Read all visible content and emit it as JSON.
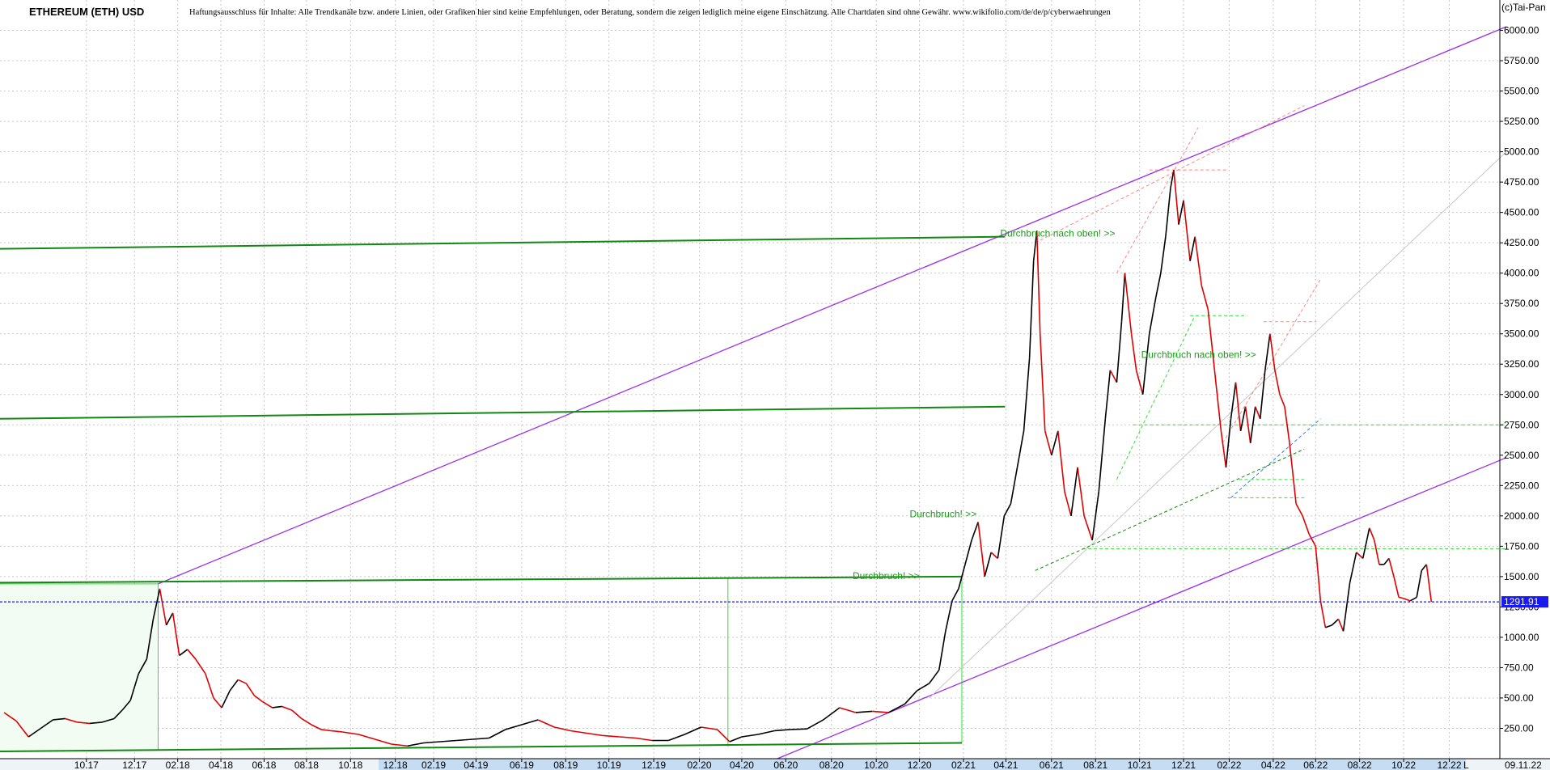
{
  "header": {
    "title": "ETHEREUM (ETH) USD",
    "disclaimer": "Haftungsausschluss für Inhalte: Alle Trendkanäle bzw. andere Linien, oder Grafiken hier sind keine Empfehlungen, oder Beratung, sondern die zeigen lediglich meine eigene Einschätzung. Alle Chartdaten sind ohne Gewähr.  www.wikifolio.com/de/de/p/cyberwaehrungen",
    "copyright": "(c)Tai-Pan"
  },
  "colors": {
    "candle_up": "#000000",
    "candle_down": "#e00000",
    "channel": "#9a30e8",
    "resistance": "#118811",
    "light_green": "#33dd33",
    "last_price": "#1a1aee"
  },
  "chart_data": {
    "type": "line",
    "ylim": [
      0,
      6250
    ],
    "yticks": [
      250,
      500,
      750,
      1000,
      1250,
      1500,
      1750,
      2000,
      2250,
      2500,
      2750,
      3000,
      3250,
      3500,
      3750,
      4000,
      4250,
      4500,
      4750,
      5000,
      5250,
      5500,
      5750,
      6000
    ],
    "ytick_labels": [
      "250.00",
      "500.00",
      "750.00",
      "1000.00",
      "1250.00",
      "1500.00",
      "1750.00",
      "2000.00",
      "2250.00",
      "2500.00",
      "2750.00",
      "3000.00",
      "3250.00",
      "3500.00",
      "3750.00",
      "4000.00",
      "4250.00",
      "4500.00",
      "4750.00",
      "5000.00",
      "5250.00",
      "5500.00",
      "5750.00",
      "6000.00"
    ],
    "x_index_range": [
      0,
      1840
    ],
    "xticks": [
      {
        "i": 106,
        "label": "10.17"
      },
      {
        "i": 165,
        "label": "12.17"
      },
      {
        "i": 218,
        "label": "02.18"
      },
      {
        "i": 271,
        "label": "04.18"
      },
      {
        "i": 324,
        "label": "06.18"
      },
      {
        "i": 376,
        "label": "08.18"
      },
      {
        "i": 430,
        "label": "10.18"
      },
      {
        "i": 485,
        "label": "12.18"
      },
      {
        "i": 532,
        "label": "02.19"
      },
      {
        "i": 584,
        "label": "04.19"
      },
      {
        "i": 640,
        "label": "06.19"
      },
      {
        "i": 694,
        "label": "08.19"
      },
      {
        "i": 747,
        "label": "10.19"
      },
      {
        "i": 802,
        "label": "12.19"
      },
      {
        "i": 858,
        "label": "02.20"
      },
      {
        "i": 910,
        "label": "04.20"
      },
      {
        "i": 964,
        "label": "06.20"
      },
      {
        "i": 1020,
        "label": "08.20"
      },
      {
        "i": 1075,
        "label": "10.20"
      },
      {
        "i": 1128,
        "label": "12.20"
      },
      {
        "i": 1182,
        "label": "02.21"
      },
      {
        "i": 1234,
        "label": "04.21"
      },
      {
        "i": 1290,
        "label": "06.21"
      },
      {
        "i": 1344,
        "label": "08.21"
      },
      {
        "i": 1398,
        "label": "10.21"
      },
      {
        "i": 1452,
        "label": "12.21"
      },
      {
        "i": 1508,
        "label": "02.22"
      },
      {
        "i": 1562,
        "label": "04.22"
      },
      {
        "i": 1614,
        "label": "06.22"
      },
      {
        "i": 1668,
        "label": "08.22"
      },
      {
        "i": 1722,
        "label": "10.22"
      },
      {
        "i": 1778,
        "label": "12.22"
      }
    ],
    "last_date": "09.11.22",
    "axis_end_label": "L",
    "last_price": 1291.91,
    "last_price_label": "1291.91",
    "price_series": [
      {
        "i": 5,
        "v": 380
      },
      {
        "i": 20,
        "v": 310
      },
      {
        "i": 35,
        "v": 180
      },
      {
        "i": 50,
        "v": 250
      },
      {
        "i": 65,
        "v": 320
      },
      {
        "i": 80,
        "v": 330
      },
      {
        "i": 95,
        "v": 300
      },
      {
        "i": 110,
        "v": 290
      },
      {
        "i": 125,
        "v": 300
      },
      {
        "i": 140,
        "v": 330
      },
      {
        "i": 150,
        "v": 400
      },
      {
        "i": 160,
        "v": 480
      },
      {
        "i": 170,
        "v": 700
      },
      {
        "i": 180,
        "v": 820
      },
      {
        "i": 188,
        "v": 1150
      },
      {
        "i": 196,
        "v": 1400
      },
      {
        "i": 204,
        "v": 1100
      },
      {
        "i": 212,
        "v": 1200
      },
      {
        "i": 220,
        "v": 850
      },
      {
        "i": 230,
        "v": 900
      },
      {
        "i": 240,
        "v": 820
      },
      {
        "i": 252,
        "v": 700
      },
      {
        "i": 262,
        "v": 500
      },
      {
        "i": 272,
        "v": 420
      },
      {
        "i": 282,
        "v": 560
      },
      {
        "i": 292,
        "v": 650
      },
      {
        "i": 302,
        "v": 620
      },
      {
        "i": 312,
        "v": 520
      },
      {
        "i": 322,
        "v": 470
      },
      {
        "i": 334,
        "v": 420
      },
      {
        "i": 346,
        "v": 430
      },
      {
        "i": 358,
        "v": 400
      },
      {
        "i": 370,
        "v": 330
      },
      {
        "i": 382,
        "v": 280
      },
      {
        "i": 394,
        "v": 240
      },
      {
        "i": 406,
        "v": 230
      },
      {
        "i": 420,
        "v": 220
      },
      {
        "i": 440,
        "v": 200
      },
      {
        "i": 460,
        "v": 160
      },
      {
        "i": 480,
        "v": 120
      },
      {
        "i": 500,
        "v": 105
      },
      {
        "i": 520,
        "v": 130
      },
      {
        "i": 540,
        "v": 140
      },
      {
        "i": 560,
        "v": 150
      },
      {
        "i": 580,
        "v": 160
      },
      {
        "i": 600,
        "v": 170
      },
      {
        "i": 620,
        "v": 240
      },
      {
        "i": 640,
        "v": 280
      },
      {
        "i": 660,
        "v": 320
      },
      {
        "i": 680,
        "v": 260
      },
      {
        "i": 700,
        "v": 230
      },
      {
        "i": 720,
        "v": 210
      },
      {
        "i": 740,
        "v": 190
      },
      {
        "i": 760,
        "v": 180
      },
      {
        "i": 780,
        "v": 170
      },
      {
        "i": 800,
        "v": 150
      },
      {
        "i": 820,
        "v": 150
      },
      {
        "i": 840,
        "v": 200
      },
      {
        "i": 860,
        "v": 260
      },
      {
        "i": 880,
        "v": 240
      },
      {
        "i": 895,
        "v": 140
      },
      {
        "i": 910,
        "v": 180
      },
      {
        "i": 930,
        "v": 200
      },
      {
        "i": 950,
        "v": 230
      },
      {
        "i": 970,
        "v": 240
      },
      {
        "i": 990,
        "v": 245
      },
      {
        "i": 1010,
        "v": 320
      },
      {
        "i": 1030,
        "v": 420
      },
      {
        "i": 1050,
        "v": 380
      },
      {
        "i": 1070,
        "v": 390
      },
      {
        "i": 1090,
        "v": 380
      },
      {
        "i": 1110,
        "v": 450
      },
      {
        "i": 1125,
        "v": 560
      },
      {
        "i": 1140,
        "v": 620
      },
      {
        "i": 1152,
        "v": 730
      },
      {
        "i": 1160,
        "v": 1050
      },
      {
        "i": 1168,
        "v": 1300
      },
      {
        "i": 1176,
        "v": 1400
      },
      {
        "i": 1184,
        "v": 1600
      },
      {
        "i": 1192,
        "v": 1800
      },
      {
        "i": 1200,
        "v": 1950
      },
      {
        "i": 1208,
        "v": 1500
      },
      {
        "i": 1216,
        "v": 1700
      },
      {
        "i": 1224,
        "v": 1650
      },
      {
        "i": 1232,
        "v": 2000
      },
      {
        "i": 1240,
        "v": 2100
      },
      {
        "i": 1248,
        "v": 2400
      },
      {
        "i": 1256,
        "v": 2700
      },
      {
        "i": 1263,
        "v": 3300
      },
      {
        "i": 1268,
        "v": 4100
      },
      {
        "i": 1272,
        "v": 4350
      },
      {
        "i": 1276,
        "v": 3500
      },
      {
        "i": 1282,
        "v": 2700
      },
      {
        "i": 1290,
        "v": 2500
      },
      {
        "i": 1298,
        "v": 2700
      },
      {
        "i": 1306,
        "v": 2200
      },
      {
        "i": 1314,
        "v": 2000
      },
      {
        "i": 1322,
        "v": 2400
      },
      {
        "i": 1330,
        "v": 2000
      },
      {
        "i": 1340,
        "v": 1800
      },
      {
        "i": 1348,
        "v": 2200
      },
      {
        "i": 1356,
        "v": 2800
      },
      {
        "i": 1362,
        "v": 3200
      },
      {
        "i": 1370,
        "v": 3100
      },
      {
        "i": 1376,
        "v": 3600
      },
      {
        "i": 1380,
        "v": 4000
      },
      {
        "i": 1388,
        "v": 3500
      },
      {
        "i": 1394,
        "v": 3200
      },
      {
        "i": 1402,
        "v": 3000
      },
      {
        "i": 1410,
        "v": 3500
      },
      {
        "i": 1418,
        "v": 3800
      },
      {
        "i": 1424,
        "v": 4000
      },
      {
        "i": 1430,
        "v": 4300
      },
      {
        "i": 1436,
        "v": 4700
      },
      {
        "i": 1440,
        "v": 4850
      },
      {
        "i": 1446,
        "v": 4400
      },
      {
        "i": 1452,
        "v": 4600
      },
      {
        "i": 1460,
        "v": 4100
      },
      {
        "i": 1466,
        "v": 4300
      },
      {
        "i": 1474,
        "v": 3900
      },
      {
        "i": 1482,
        "v": 3700
      },
      {
        "i": 1490,
        "v": 3200
      },
      {
        "i": 1498,
        "v": 2700
      },
      {
        "i": 1504,
        "v": 2400
      },
      {
        "i": 1510,
        "v": 2800
      },
      {
        "i": 1516,
        "v": 3100
      },
      {
        "i": 1522,
        "v": 2700
      },
      {
        "i": 1528,
        "v": 2900
      },
      {
        "i": 1534,
        "v": 2600
      },
      {
        "i": 1540,
        "v": 2900
      },
      {
        "i": 1546,
        "v": 2800
      },
      {
        "i": 1552,
        "v": 3200
      },
      {
        "i": 1558,
        "v": 3500
      },
      {
        "i": 1564,
        "v": 3200
      },
      {
        "i": 1570,
        "v": 3000
      },
      {
        "i": 1576,
        "v": 2900
      },
      {
        "i": 1582,
        "v": 2600
      },
      {
        "i": 1590,
        "v": 2100
      },
      {
        "i": 1598,
        "v": 2000
      },
      {
        "i": 1606,
        "v": 1850
      },
      {
        "i": 1614,
        "v": 1750
      },
      {
        "i": 1620,
        "v": 1300
      },
      {
        "i": 1626,
        "v": 1080
      },
      {
        "i": 1634,
        "v": 1100
      },
      {
        "i": 1642,
        "v": 1150
      },
      {
        "i": 1648,
        "v": 1050
      },
      {
        "i": 1656,
        "v": 1450
      },
      {
        "i": 1664,
        "v": 1700
      },
      {
        "i": 1672,
        "v": 1650
      },
      {
        "i": 1680,
        "v": 1900
      },
      {
        "i": 1686,
        "v": 1800
      },
      {
        "i": 1692,
        "v": 1600
      },
      {
        "i": 1698,
        "v": 1600
      },
      {
        "i": 1704,
        "v": 1650
      },
      {
        "i": 1710,
        "v": 1500
      },
      {
        "i": 1716,
        "v": 1330
      },
      {
        "i": 1722,
        "v": 1320
      },
      {
        "i": 1730,
        "v": 1300
      },
      {
        "i": 1738,
        "v": 1330
      },
      {
        "i": 1744,
        "v": 1550
      },
      {
        "i": 1750,
        "v": 1600
      },
      {
        "i": 1756,
        "v": 1292
      }
    ],
    "annotations": [
      {
        "text": "Durchbruch nach oben! >>",
        "i": 1227,
        "v": 4300
      },
      {
        "text": "Durchbruch nach oben! >>",
        "i": 1400,
        "v": 3300
      },
      {
        "text": "Durchbruch! >>",
        "i": 1116,
        "v": 1990
      },
      {
        "text": "Durchbruch! >>",
        "i": 1046,
        "v": 1480
      }
    ],
    "trend_lines": [
      {
        "name": "upper-purple-channel",
        "color": "channel",
        "i1": 194,
        "v1": 1440,
        "i2": 1848,
        "v2": 6030,
        "width": 1.3
      },
      {
        "name": "lower-purple-channel",
        "color": "channel",
        "i1": 950,
        "v1": -10,
        "i2": 1848,
        "v2": 2480,
        "width": 1.3
      },
      {
        "name": "green-resistance-4200",
        "color": "resistance",
        "i1": 0,
        "v1": 4200,
        "i2": 1233,
        "v2": 4300,
        "width": 2
      },
      {
        "name": "green-resistance-2800",
        "color": "resistance",
        "i1": 0,
        "v1": 2800,
        "i2": 1233,
        "v2": 2900,
        "width": 2
      },
      {
        "name": "green-resistance-1450",
        "color": "resistance",
        "i1": 0,
        "v1": 1450,
        "i2": 1180,
        "v2": 1500,
        "width": 2
      },
      {
        "name": "green-support-bottom",
        "color": "resistance",
        "i1": 0,
        "v1": 60,
        "i2": 1180,
        "v2": 130,
        "width": 2
      },
      {
        "name": "grey-diagonal",
        "color": "#c8c8c8",
        "i1": 1140,
        "v1": 500,
        "i2": 1848,
        "v2": 5000,
        "width": 1
      }
    ],
    "light_lines": [
      {
        "i1": 0,
        "v1": 1440,
        "i2": 194,
        "v2": 1440
      },
      {
        "i1": 194,
        "v1": 1440,
        "i2": 194,
        "v2": 70
      },
      {
        "i1": 893,
        "v1": 1490,
        "i2": 893,
        "v2": 100
      },
      {
        "i1": 1180,
        "v1": 1500,
        "i2": 1180,
        "v2": 130
      }
    ]
  }
}
